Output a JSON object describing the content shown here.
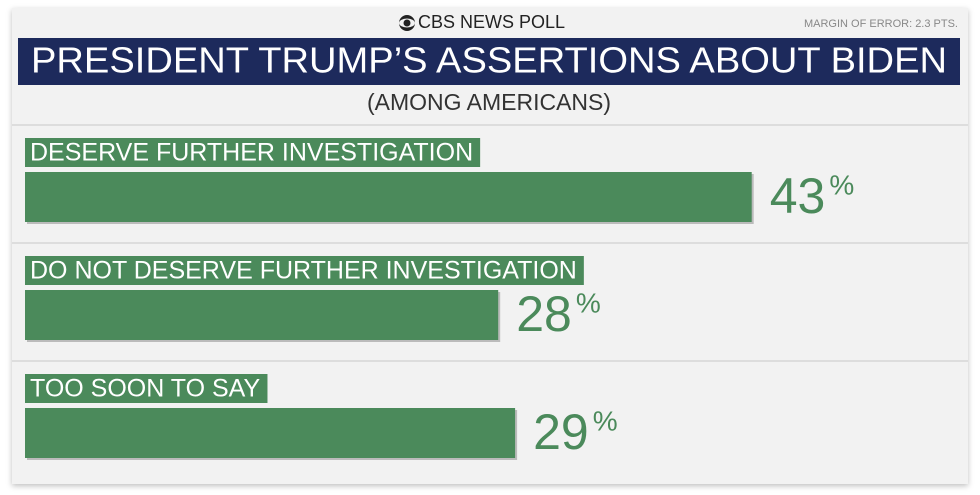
{
  "chart_data": {
    "type": "bar",
    "header": "CBS NEWS POLL",
    "note": "MARGIN OF ERROR: 2.3 PTS.",
    "title": "PRESIDENT TRUMP’S ASSERTIONS ABOUT BIDEN",
    "subtitle": "(AMONG AMERICANS)",
    "categories": [
      "DESERVE FURTHER INVESTIGATION",
      "DO NOT DESERVE FURTHER INVESTIGATION",
      "TOO SOON TO SAY"
    ],
    "values": [
      43,
      28,
      29
    ],
    "unit": "%",
    "color": "#4b8a5b"
  }
}
